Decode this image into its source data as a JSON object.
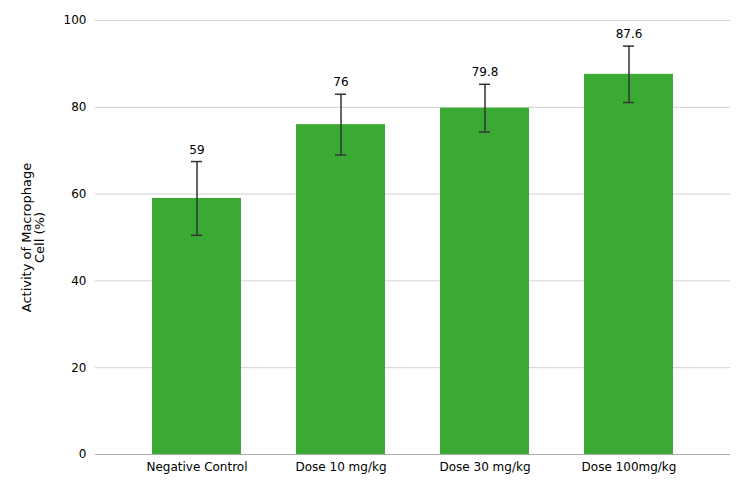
{
  "chart_data": {
    "type": "bar",
    "categories": [
      "Negative Control",
      "Dose 10 mg/kg",
      "Dose 30 mg/kg",
      "Dose 100mg/kg"
    ],
    "values": [
      59,
      76,
      79.8,
      87.6
    ],
    "errors": [
      8.5,
      7.0,
      5.5,
      6.5
    ],
    "color": "#3aaa35",
    "ylabel": "Activity of Macrophage\nCell (%)",
    "ylim": [
      0,
      100
    ],
    "yticks": [
      0,
      20,
      40,
      60,
      80,
      100
    ],
    "grid": true,
    "data_labels": true
  }
}
